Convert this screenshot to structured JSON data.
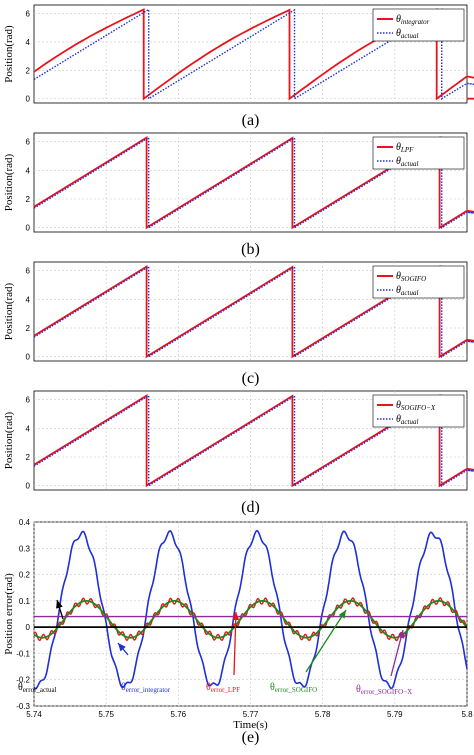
{
  "chart_data": [
    {
      "type": "line",
      "panel_label": "(a)",
      "ylabel": "Position(rad)",
      "ylim": [
        -0.3,
        6.6
      ],
      "yticks": [
        "0",
        "2",
        "4",
        "6"
      ],
      "grid": true,
      "x_period_s": 0.0203,
      "series": [
        {
          "name": "θintegrator",
          "name_main": "θ",
          "name_sub": "integrator",
          "color": "#e8141c",
          "style": "solid"
        },
        {
          "name": "θactual",
          "name_main": "θ",
          "name_sub": "actual",
          "color": "#1f2fd6",
          "style": "dotted"
        }
      ]
    },
    {
      "type": "line",
      "panel_label": "(b)",
      "ylabel": "Position(rad)",
      "ylim": [
        -0.3,
        6.6
      ],
      "yticks": [
        "0",
        "2",
        "4",
        "6"
      ],
      "grid": true,
      "series": [
        {
          "name": "θLPF",
          "name_main": "θ",
          "name_sub": "LPF",
          "color": "#e8141c",
          "style": "solid"
        },
        {
          "name": "θactual",
          "name_main": "θ",
          "name_sub": "actual",
          "color": "#1f2fd6",
          "style": "dotted"
        }
      ]
    },
    {
      "type": "line",
      "panel_label": "(c)",
      "ylabel": "Position(rad)",
      "ylim": [
        -0.3,
        6.6
      ],
      "yticks": [
        "0",
        "2",
        "4",
        "6"
      ],
      "grid": true,
      "series": [
        {
          "name": "θSOGIFO",
          "name_main": "θ",
          "name_sub": "SOGIFO",
          "color": "#e8141c",
          "style": "solid"
        },
        {
          "name": "θactual",
          "name_main": "θ",
          "name_sub": "actual",
          "color": "#1f2fd6",
          "style": "dotted"
        }
      ]
    },
    {
      "type": "line",
      "panel_label": "(d)",
      "ylabel": "Position(rad)",
      "ylim": [
        -0.3,
        6.6
      ],
      "yticks": [
        "0",
        "2",
        "4",
        "6"
      ],
      "grid": true,
      "series": [
        {
          "name": "θSOGIFO-X",
          "name_main": "θ",
          "name_sub": "SOGIFO−X",
          "color": "#e8141c",
          "style": "solid"
        },
        {
          "name": "θactual",
          "name_main": "θ",
          "name_sub": "actual",
          "color": "#1f2fd6",
          "style": "dotted"
        }
      ]
    },
    {
      "type": "line",
      "panel_label": "(e)",
      "ylabel": "Position error(rad)",
      "xlabel": "Time(s)",
      "xlim": [
        5.74,
        5.8
      ],
      "ylim": [
        -0.3,
        0.4
      ],
      "xticks": [
        "5.74",
        "5.75",
        "5.76",
        "5.77",
        "5.78",
        "5.79",
        "5.8"
      ],
      "yticks": [
        "-0.3",
        "-0.2",
        "-0.1",
        "0",
        "0.1",
        "0.2",
        "0.3",
        "0.4"
      ],
      "grid": true,
      "series": [
        {
          "name": "θerror_actual",
          "color": "#000000",
          "constant": 0.0
        },
        {
          "name": "θerror_integrator",
          "color": "#1f2fd6",
          "mean": 0.065,
          "amplitude": 0.29,
          "period_s": 0.0122
        },
        {
          "name": "θerror_LPF",
          "color": "#e8141c",
          "mean": 0.03,
          "amplitude": 0.07,
          "period_s": 0.0122
        },
        {
          "name": "θerror_SOGIFO",
          "color": "#1a8a1a",
          "mean": 0.03,
          "amplitude": 0.07,
          "period_s": 0.0122
        },
        {
          "name": "θerror_SOGIFO-X",
          "color": "#8c2d9c",
          "constant": 0.04
        }
      ],
      "annotations": [
        {
          "main": "θ",
          "sub": "error_actual",
          "color": "#000000"
        },
        {
          "main": "θ",
          "sub": "error_integrator",
          "color": "#1f2fd6"
        },
        {
          "main": "θ",
          "sub": "error_LPF",
          "color": "#e8141c"
        },
        {
          "main": "θ",
          "sub": "error_SOGIFO",
          "color": "#1a8a1a"
        },
        {
          "main": "θ",
          "sub": "error_SOGIFO−X",
          "color": "#8c2d9c"
        }
      ]
    }
  ]
}
